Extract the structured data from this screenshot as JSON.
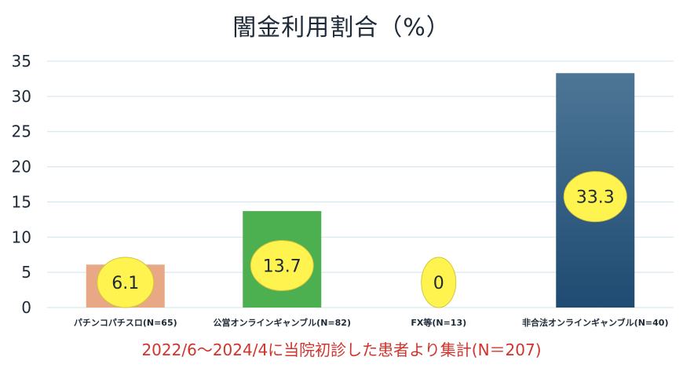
{
  "chart_data": {
    "type": "bar",
    "title": "闇金利用割合（%）",
    "note": "2022/6～2024/4に当院初診した患者より集計(N＝207)",
    "categories": [
      "パチンコパチスロ(N=65)",
      "公営オンラインギャンブル(N=82)",
      "FX等(N=13)",
      "非合法オンラインギャンブル(N=40)"
    ],
    "values": [
      6.1,
      13.7,
      0,
      33.3
    ],
    "value_labels": [
      "6.1",
      "13.7",
      "0",
      "33.3"
    ],
    "y_ticks": [
      "0",
      "5",
      "10",
      "15",
      "20",
      "25",
      "30",
      "35"
    ],
    "ylim": [
      0,
      35
    ],
    "grid": true,
    "legend": "none",
    "colors": {
      "bars": [
        "#e8a885",
        "#4caf50",
        "#ffffff",
        "#2e5c80"
      ],
      "label_bubble": "#fff44f",
      "grid": "#cfe3ec",
      "note": "#d0342c"
    }
  }
}
